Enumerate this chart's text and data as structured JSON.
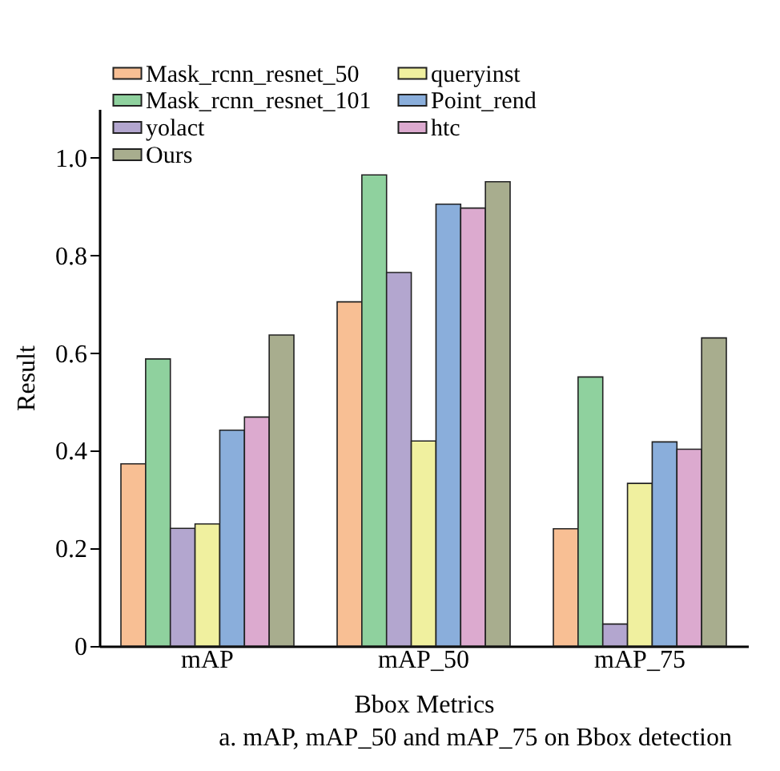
{
  "chart_data": {
    "type": "bar",
    "xlabel": "Bbox Metrics",
    "ylabel": "Result",
    "annotations": [
      "a. mAP, mAP_50 and mAP_75 on Bbox detection"
    ],
    "categories": [
      "mAP",
      "mAP_50",
      "mAP_75"
    ],
    "series": [
      {
        "name": "Mask_rcnn_resnet_50",
        "color": "#f8bf94",
        "values": [
          0.373,
          0.705,
          0.24
        ]
      },
      {
        "name": "Mask_rcnn_resnet_101",
        "color": "#8fd19e",
        "values": [
          0.588,
          0.965,
          0.551
        ]
      },
      {
        "name": "yolact",
        "color": "#b3a6cf",
        "values": [
          0.241,
          0.765,
          0.045
        ]
      },
      {
        "name": "queryinst",
        "color": "#f0f09f",
        "values": [
          0.25,
          0.42,
          0.333
        ]
      },
      {
        "name": "Point_rend",
        "color": "#8aaedb",
        "values": [
          0.442,
          0.905,
          0.418
        ]
      },
      {
        "name": "htc",
        "color": "#dcaacf",
        "values": [
          0.469,
          0.897,
          0.403
        ]
      },
      {
        "name": "Ours",
        "color": "#a8ad8e",
        "values": [
          0.637,
          0.951,
          0.631
        ]
      }
    ],
    "ylim": [
      0,
      1.1
    ],
    "yticks": [
      {
        "value": 0,
        "label": "0"
      },
      0.2,
      0.4,
      0.6,
      0.8,
      {
        "value": 1,
        "label": "1.0"
      }
    ],
    "legend": "top left",
    "grid": false
  }
}
